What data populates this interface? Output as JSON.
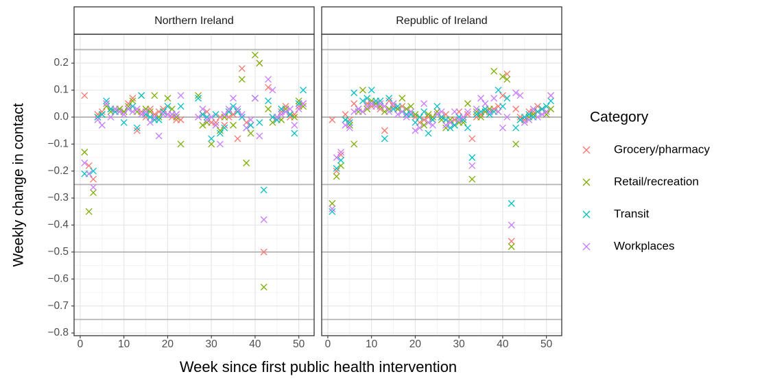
{
  "chart_data": {
    "type": "scatter",
    "xlabel": "Week since first public health intervention",
    "ylabel": "Weekly change in contact",
    "legend_title": "Category",
    "legend_position": "right",
    "grid": true,
    "xlim": [
      -1.4,
      53.5
    ],
    "ylim": [
      -0.81,
      0.307
    ],
    "xticks": [
      0,
      10,
      20,
      30,
      40,
      50
    ],
    "yticks": [
      0.2,
      0.1,
      {
        "value": 0,
        "label": "0.0"
      },
      {
        "value": -0.1,
        "label": "−0.1"
      },
      {
        "value": -0.2,
        "label": "−0.2"
      },
      {
        "value": -0.3,
        "label": "−0.3"
      },
      {
        "value": -0.4,
        "label": "−0.4"
      },
      {
        "value": -0.5,
        "label": "−0.5"
      },
      {
        "value": -0.6,
        "label": "−0.6"
      },
      {
        "value": -0.7,
        "label": "−0.7"
      },
      {
        "value": -0.8,
        "label": "−0.8"
      }
    ],
    "hlines": [
      0.25,
      0,
      -0.25,
      -0.5,
      -0.75
    ],
    "series": [
      {
        "name": "Grocery/pharmacy",
        "color": "#F8766D"
      },
      {
        "name": "Retail/recreation",
        "color": "#7CAE00"
      },
      {
        "name": "Transit",
        "color": "#00BFC4"
      },
      {
        "name": "Workplaces",
        "color": "#C77CFF"
      }
    ],
    "panels": [
      {
        "title": "Northern Ireland",
        "x": [
          1,
          2,
          3,
          4,
          5,
          6,
          7,
          8,
          9,
          10,
          11,
          12,
          13,
          14,
          15,
          16,
          17,
          18,
          19,
          20,
          21,
          22,
          23,
          24,
          25,
          26,
          27,
          28,
          29,
          30,
          31,
          32,
          33,
          34,
          35,
          36,
          37,
          38,
          39,
          40,
          41,
          42,
          43,
          44,
          45,
          46,
          47,
          48,
          49,
          50,
          51
        ],
        "values": [
          [
            0.08,
            -0.18,
            -0.23,
            0.01,
            0.02,
            0.05,
            0.03,
            0.02,
            0.03,
            0.02,
            0.05,
            0.07,
            -0.05,
            0.02,
            0.0,
            0.03,
            0.01,
            0.02,
            0.03,
            0.01,
            0.0,
            -0.01,
            -0.01,
            null,
            null,
            null,
            0.0,
            0.01,
            0.02,
            -0.02,
            -0.02,
            0.0,
            -0.03,
            0.0,
            0.01,
            -0.08,
            0.18,
            -0.02,
            -0.03,
            0.07,
            0.2,
            -0.5,
            0.11,
            0.0,
            -0.01,
            0.02,
            0.04,
            0.0,
            0.01,
            0.04,
            0.05
          ],
          [
            -0.13,
            -0.35,
            -0.28,
            0.0,
            0.01,
            0.04,
            0.02,
            0.03,
            0.03,
            0.02,
            0.04,
            0.06,
            0.02,
            0.08,
            0.03,
            0.02,
            0.08,
            0.0,
            0.02,
            0.07,
            0.03,
            0.0,
            -0.1,
            null,
            null,
            null,
            0.08,
            -0.03,
            -0.02,
            -0.1,
            -0.03,
            -0.05,
            0.0,
            0.02,
            -0.03,
            0.02,
            0.14,
            -0.17,
            -0.06,
            0.23,
            0.2,
            -0.63,
            0.03,
            -0.02,
            0.0,
            -0.01,
            0.03,
            0.01,
            0.0,
            0.06,
            0.04
          ],
          [
            -0.21,
            -0.21,
            -0.2,
            0.0,
            0.01,
            0.06,
            0.03,
            0.02,
            0.02,
            -0.02,
            0.03,
            0.04,
            -0.04,
            0.08,
            0.01,
            0.0,
            -0.01,
            -0.01,
            0.02,
            0.04,
            0.01,
            0.01,
            0.04,
            null,
            null,
            null,
            0.07,
            0.01,
            0.0,
            -0.08,
            0.01,
            -0.06,
            -0.04,
            0.02,
            0.04,
            0.02,
            0.0,
            -0.04,
            -0.03,
            0.07,
            -0.02,
            -0.27,
            0.06,
            0.0,
            -0.01,
            0.03,
            0.02,
            0.01,
            -0.06,
            0.05,
            0.1
          ],
          [
            -0.17,
            -0.21,
            -0.26,
            -0.01,
            -0.03,
            0.05,
            0.0,
            0.03,
            0.02,
            0.01,
            0.03,
            0.02,
            0.03,
            0.01,
            0.02,
            -0.02,
            0.0,
            -0.07,
            0.01,
            0.01,
            0.01,
            0.01,
            0.08,
            null,
            null,
            null,
            0.0,
            0.03,
            -0.01,
            0.0,
            -0.03,
            -0.1,
            0.01,
            0.03,
            0.07,
            0.03,
            0.01,
            -0.04,
            -0.01,
            0.07,
            -0.07,
            -0.38,
            0.14,
            0.1,
            0.0,
            0.01,
            0.02,
            0.03,
            -0.03,
            0.03,
            0.05
          ]
        ]
      },
      {
        "title": "Republic of Ireland",
        "x": [
          1,
          2,
          3,
          4,
          5,
          6,
          7,
          8,
          9,
          10,
          11,
          12,
          13,
          14,
          15,
          16,
          17,
          18,
          19,
          20,
          21,
          22,
          23,
          24,
          25,
          26,
          27,
          28,
          29,
          30,
          31,
          32,
          33,
          34,
          35,
          36,
          37,
          38,
          39,
          40,
          41,
          42,
          43,
          44,
          45,
          46,
          47,
          48,
          49,
          50,
          51
        ],
        "values": [
          [
            -0.01,
            -0.2,
            -0.14,
            0.01,
            -0.01,
            0.05,
            0.03,
            0.02,
            0.05,
            0.04,
            0.05,
            0.03,
            -0.05,
            0.06,
            0.04,
            0.03,
            0.04,
            0.01,
            0.02,
            0.0,
            -0.02,
            -0.01,
            0.0,
            -0.01,
            0.02,
            0.0,
            0.01,
            -0.02,
            -0.01,
            0.02,
            0.0,
            0.01,
            -0.08,
            0.0,
            0.01,
            0.02,
            0.02,
            0.03,
            0.04,
            0.08,
            0.16,
            -0.46,
            0.03,
            0.0,
            -0.01,
            0.02,
            0.02,
            0.04,
            0.03,
            0.02,
            0.08
          ],
          [
            -0.32,
            -0.22,
            -0.18,
            -0.01,
            -0.03,
            -0.1,
            0.02,
            0.1,
            0.03,
            0.06,
            0.05,
            0.04,
            0.02,
            0.03,
            0.05,
            0.03,
            0.07,
            0.03,
            0.04,
            0.01,
            0.0,
            -0.03,
            0.01,
            0.0,
            0.02,
            -0.01,
            -0.04,
            -0.01,
            -0.03,
            -0.02,
            -0.02,
            0.05,
            -0.23,
            0.02,
            0.0,
            0.02,
            0.03,
            0.17,
            0.02,
            0.15,
            0.14,
            -0.48,
            -0.1,
            -0.01,
            -0.02,
            0.0,
            0.01,
            0.02,
            0.03,
            0.01,
            0.03
          ],
          [
            -0.35,
            -0.19,
            -0.16,
            -0.01,
            -0.02,
            0.09,
            0.03,
            0.06,
            0.07,
            0.1,
            0.06,
            0.06,
            -0.08,
            0.07,
            0.03,
            0.04,
            0.02,
            0.01,
            0.01,
            -0.02,
            0.0,
            0.02,
            -0.06,
            -0.01,
            0.04,
            0.0,
            -0.01,
            -0.04,
            -0.03,
            0.0,
            -0.01,
            -0.04,
            -0.15,
            0.01,
            0.02,
            0.03,
            0.01,
            0.02,
            0.1,
            0.04,
            0.07,
            -0.32,
            -0.04,
            -0.01,
            0.0,
            0.01,
            0.0,
            0.02,
            0.03,
            0.04,
            0.06
          ],
          [
            -0.34,
            -0.15,
            -0.13,
            -0.03,
            -0.04,
            0.02,
            0.03,
            0.02,
            0.04,
            0.05,
            0.04,
            0.05,
            0.04,
            0.02,
            0.05,
            0.01,
            0.02,
            0.0,
            0.02,
            -0.05,
            -0.04,
            0.05,
            -0.02,
            -0.03,
            0.01,
            0.02,
            -0.03,
            -0.02,
            0.02,
            -0.01,
            0.0,
            0.02,
            -0.18,
            0.03,
            0.07,
            0.05,
            0.02,
            0.07,
            0.02,
            -0.04,
            0.0,
            -0.4,
            0.09,
            0.08,
            -0.02,
            -0.01,
            0.03,
            0.0,
            0.01,
            0.02,
            0.08
          ]
        ]
      }
    ]
  }
}
